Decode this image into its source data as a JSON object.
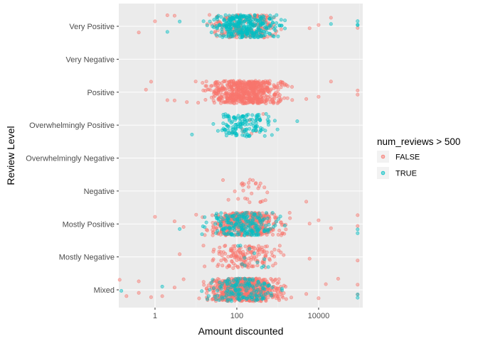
{
  "chart_data": {
    "type": "scatter",
    "jitter": true,
    "xlabel": "Amount discounted",
    "ylabel": "Review Level",
    "x_scale": "log10",
    "xlim": [
      0.13,
      120000
    ],
    "x_ticks": [
      {
        "value": 1,
        "label": "1"
      },
      {
        "value": 100,
        "label": "100"
      },
      {
        "value": 10000,
        "label": "10000"
      }
    ],
    "categories": [
      "Mixed",
      "Mostly Negative",
      "Mostly Positive",
      "Negative",
      "Overwhelmingly Negative",
      "Overwhelmingly Positive",
      "Positive",
      "Very Negative",
      "Very Positive"
    ],
    "grid": true,
    "legend": {
      "title": "num_reviews > 500",
      "placement": "right",
      "entries": [
        {
          "label": "FALSE",
          "color": "#F8766D"
        },
        {
          "label": "TRUE",
          "color": "#00BFC4"
        }
      ]
    },
    "series": [
      {
        "name": "FALSE",
        "color": "#F8766D",
        "clusters": [
          {
            "category": "Mixed",
            "count": 650,
            "x_min": 8,
            "x_max": 3000,
            "tail_low": [
              0.1,
              0.2,
              0.4,
              0.4,
              0.8,
              1.5,
              3.0,
              5.0
            ],
            "tail_high": [
              5000,
              10000,
              15000,
              30000,
              90000,
              90000
            ]
          },
          {
            "category": "Mostly Negative",
            "count": 160,
            "x_min": 10,
            "x_max": 3000,
            "tail_low": [
              4
            ],
            "tail_high": [
              6000,
              90000
            ]
          },
          {
            "category": "Mostly Positive",
            "count": 420,
            "x_min": 8,
            "x_max": 3000,
            "tail_low": [
              1.0,
              3.0,
              5.0
            ],
            "tail_high": [
              6000,
              10000,
              20000,
              90000,
              90000
            ]
          },
          {
            "category": "Negative",
            "count": 28,
            "x_min": 30,
            "x_max": 1500,
            "tail_low": [],
            "tail_high": [
              5000
            ]
          },
          {
            "category": "Overwhelmingly Negative",
            "count": 0,
            "x_min": 1,
            "x_max": 1,
            "tail_low": [],
            "tail_high": []
          },
          {
            "category": "Overwhelmingly Positive",
            "count": 8,
            "x_min": 20,
            "x_max": 1500,
            "tail_low": [],
            "tail_high": []
          },
          {
            "category": "Positive",
            "count": 620,
            "x_min": 8,
            "x_max": 3000,
            "tail_low": [
              0.6,
              0.8,
              2.0,
              3.0,
              6.0
            ],
            "tail_high": [
              5000,
              10000,
              20000,
              90000,
              90000
            ]
          },
          {
            "category": "Very Negative",
            "count": 0,
            "x_min": 1,
            "x_max": 1,
            "tail_low": [],
            "tail_high": []
          },
          {
            "category": "Very Positive",
            "count": 200,
            "x_min": 8,
            "x_max": 3000,
            "tail_low": [
              0.4,
              1.0,
              2.0,
              3.0
            ],
            "tail_high": [
              6000,
              10000,
              20000,
              90000
            ]
          }
        ]
      },
      {
        "name": "TRUE",
        "color": "#00BFC4",
        "clusters": [
          {
            "category": "Mixed",
            "count": 150,
            "x_min": 10,
            "x_max": 2000,
            "tail_low": [
              0.15,
              1.5
            ],
            "tail_high": [
              90000,
              90000
            ]
          },
          {
            "category": "Mostly Negative",
            "count": 12,
            "x_min": 30,
            "x_max": 1500,
            "tail_low": [],
            "tail_high": []
          },
          {
            "category": "Mostly Positive",
            "count": 200,
            "x_min": 10,
            "x_max": 2000,
            "tail_low": [
              4.0
            ],
            "tail_high": [
              90000,
              90000
            ]
          },
          {
            "category": "Negative",
            "count": 0,
            "x_min": 1,
            "x_max": 1,
            "tail_low": [],
            "tail_high": []
          },
          {
            "category": "Overwhelmingly Negative",
            "count": 0,
            "x_min": 1,
            "x_max": 1,
            "tail_low": [],
            "tail_high": []
          },
          {
            "category": "Overwhelmingly Positive",
            "count": 140,
            "x_min": 15,
            "x_max": 1500,
            "tail_low": [
              8.0
            ],
            "tail_high": [
              3000
            ]
          },
          {
            "category": "Positive",
            "count": 0,
            "x_min": 1,
            "x_max": 1,
            "tail_low": [],
            "tail_high": []
          },
          {
            "category": "Very Negative",
            "count": 0,
            "x_min": 1,
            "x_max": 1,
            "tail_low": [],
            "tail_high": []
          },
          {
            "category": "Very Positive",
            "count": 320,
            "x_min": 8,
            "x_max": 3000,
            "tail_low": [
              2.0,
              4.0
            ],
            "tail_high": [
              20000,
              90000,
              90000,
              90000
            ]
          }
        ]
      }
    ]
  }
}
